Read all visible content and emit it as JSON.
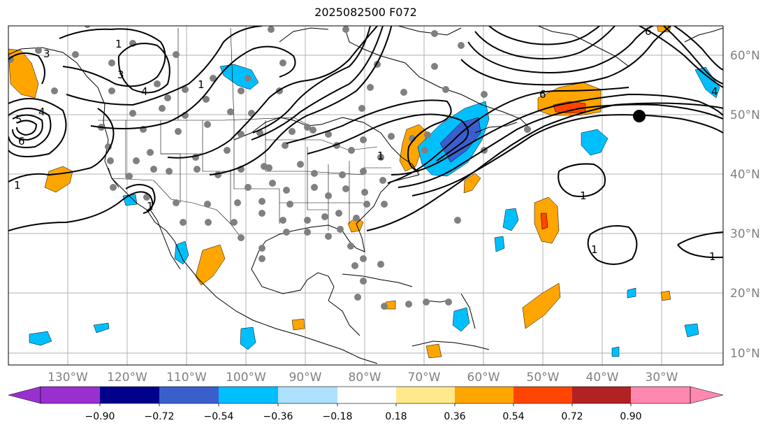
{
  "title": "2025082500 F072",
  "lat_labels": [
    "60°N",
    "50°N",
    "40°N",
    "30°N",
    "20°N",
    "10°N"
  ],
  "lon_labels": [
    "130°W",
    "120°W",
    "110°W",
    "100°W",
    "90°W",
    "80°W",
    "70°W",
    "60°W",
    "50°W",
    "40°W",
    "30°W"
  ],
  "colorbar": {
    "ticks": [
      "−0.90",
      "−0.72",
      "−0.54",
      "−0.36",
      "−0.18",
      "0.18",
      "0.36",
      "0.54",
      "0.72",
      "0.90"
    ],
    "colors": [
      "#9a2fcf",
      "#00008b",
      "#3a5fcd",
      "#00bfff",
      "#aee0ff",
      "#ffffff",
      "#ffe98a",
      "#ffa500",
      "#ff4500",
      "#b22222",
      "#ff88b0"
    ]
  },
  "contour_labels": [
    "3",
    "1",
    "3",
    "4",
    "1",
    "5",
    "4",
    "6",
    "1",
    "6",
    "1",
    "1",
    "1",
    "1",
    "4",
    "6",
    "1"
  ],
  "colors": {
    "station_dot": "#808080",
    "marker": "#000000",
    "land_outline": "#000000",
    "grid": "#b0b0b0"
  }
}
